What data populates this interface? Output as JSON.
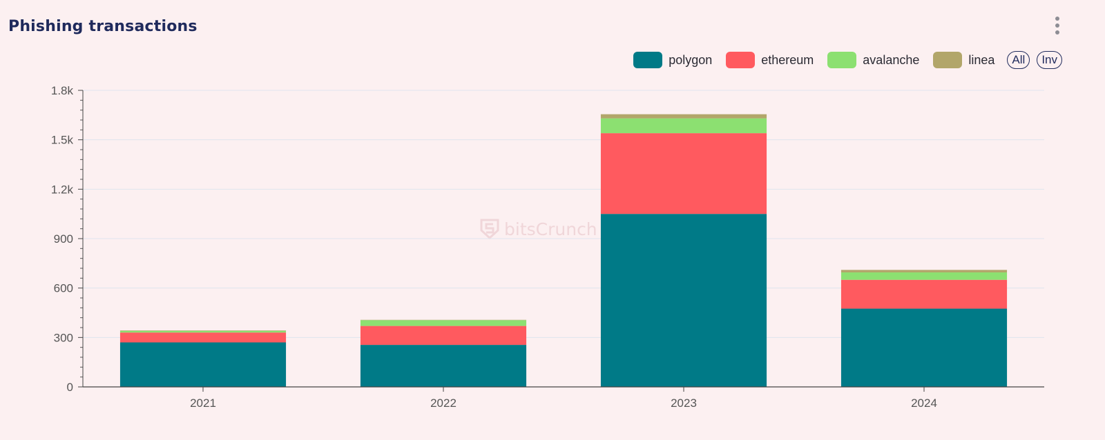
{
  "header": {
    "title": "Phishing transactions"
  },
  "menu_icon": "more-vert-icon",
  "legend": {
    "all_label": "All",
    "inv_label": "Inv"
  },
  "watermark": {
    "text": "bitsCrunch",
    "icon": "bitscrunch-logo-icon"
  },
  "chart_data": {
    "type": "bar",
    "stacked": true,
    "categories": [
      "2021",
      "2022",
      "2023",
      "2024"
    ],
    "series": [
      {
        "name": "polygon",
        "color": "#007a87",
        "values": [
          270,
          255,
          1050,
          475
        ]
      },
      {
        "name": "ethereum",
        "color": "#ff5a5f",
        "values": [
          60,
          115,
          490,
          175
        ]
      },
      {
        "name": "avalanche",
        "color": "#8ce071",
        "values": [
          10,
          35,
          90,
          45
        ]
      },
      {
        "name": "linea",
        "color": "#b2a66a",
        "values": [
          3,
          2,
          25,
          15
        ]
      }
    ],
    "yticks": [
      "0",
      "300",
      "600",
      "900",
      "1.2k",
      "1.5k",
      "1.8k"
    ],
    "ytick_values": [
      0,
      300,
      600,
      900,
      1200,
      1500,
      1800
    ],
    "ylim": [
      0,
      1800
    ],
    "grid": true,
    "legend_position": "top-right"
  }
}
